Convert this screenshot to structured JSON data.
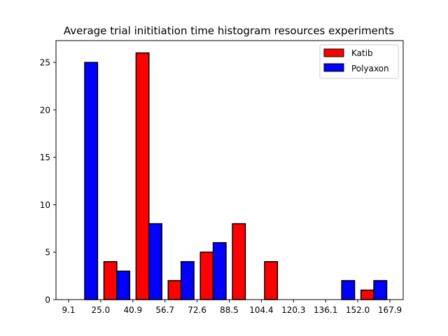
{
  "chart_data": {
    "type": "bar",
    "title": "Average trial inititiation time histogram resources experiments",
    "xlabel": "",
    "ylabel": "",
    "categories": [
      "9.1",
      "25.0",
      "40.9",
      "56.7",
      "72.6",
      "88.5",
      "104.4",
      "120.3",
      "136.1",
      "152.0",
      "167.9"
    ],
    "bins": [
      {
        "start": 9.1,
        "end": 25.0
      },
      {
        "start": 25.0,
        "end": 40.9
      },
      {
        "start": 40.9,
        "end": 56.7
      },
      {
        "start": 56.7,
        "end": 72.6
      },
      {
        "start": 72.6,
        "end": 88.5
      },
      {
        "start": 88.5,
        "end": 104.4
      },
      {
        "start": 104.4,
        "end": 120.3
      },
      {
        "start": 120.3,
        "end": 136.1
      },
      {
        "start": 136.1,
        "end": 152.0
      },
      {
        "start": 152.0,
        "end": 167.9
      }
    ],
    "series": [
      {
        "name": "Katib",
        "color": "#ff0000",
        "values": [
          0,
          4,
          26,
          2,
          5,
          8,
          4,
          0,
          0,
          1
        ]
      },
      {
        "name": "Polyaxon",
        "color": "#0000ff",
        "values": [
          25,
          3,
          8,
          4,
          6,
          0,
          0,
          0,
          2,
          2
        ]
      }
    ],
    "yticks": [
      0,
      5,
      10,
      15,
      20,
      25
    ],
    "ylim": [
      0,
      27.3
    ],
    "grid": false,
    "legend_position": "top-right"
  }
}
